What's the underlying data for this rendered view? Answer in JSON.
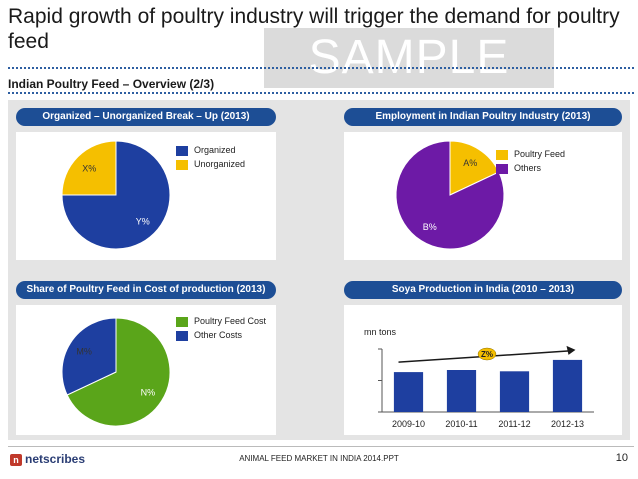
{
  "page": {
    "title": "Rapid growth of poultry industry will trigger the demand for poultry feed",
    "watermark": "SAMPLE",
    "section_heading": "Indian Poultry Feed – Overview (2/3)",
    "footer_text": "ANIMAL FEED MARKET IN INDIA 2014.PPT",
    "page_number": "10",
    "logo_text": "netscribes",
    "logo_mark": "n"
  },
  "colors": {
    "header_bg": "#1d4e95",
    "organized": "#1e3fa0",
    "unorganized": "#f5bf00",
    "poultry_feed": "#f5bf00",
    "others": "#6d1aa6",
    "feed_cost": "#5aa51a",
    "other_costs": "#1e3fa0",
    "bar": "#1e3fa0",
    "cagr_bubble": "#f5bf00",
    "trend_arrow": "#1a1a1a"
  },
  "chart_data": [
    {
      "type": "pie",
      "title": "Organized – Unorganized Break – Up (2013)",
      "legend": [
        "Organized",
        "Unorganized"
      ],
      "slices": [
        {
          "label": "Organized",
          "value_label": "Y%",
          "value": 75
        },
        {
          "label": "Unorganized",
          "value_label": "X%",
          "value": 25
        }
      ]
    },
    {
      "type": "pie",
      "title": "Employment in Indian Poultry Industry (2013)",
      "legend": [
        "Poultry Feed",
        "Others"
      ],
      "slices": [
        {
          "label": "Poultry Feed",
          "value_label": "A%",
          "value": 18
        },
        {
          "label": "Others",
          "value_label": "B%",
          "value": 82
        }
      ]
    },
    {
      "type": "pie",
      "title": "Share of Poultry Feed in Cost of production (2013)",
      "legend": [
        "Poultry Feed Cost",
        "Other Costs"
      ],
      "slices": [
        {
          "label": "Poultry Feed Cost",
          "value_label": "N%",
          "value": 68
        },
        {
          "label": "Other Costs",
          "value_label": "M%",
          "value": 32
        }
      ]
    },
    {
      "type": "bar",
      "title": "Soya Production in India (2010 – 2013)",
      "ylabel": "mn tons",
      "categories": [
        "2009-10",
        "2010-11",
        "2011-12",
        "2012-13"
      ],
      "values": [
        9.5,
        10.0,
        9.7,
        12.4
      ],
      "ylim": [
        0,
        15
      ],
      "ytick_count": 3,
      "annotation": "Z%"
    }
  ]
}
